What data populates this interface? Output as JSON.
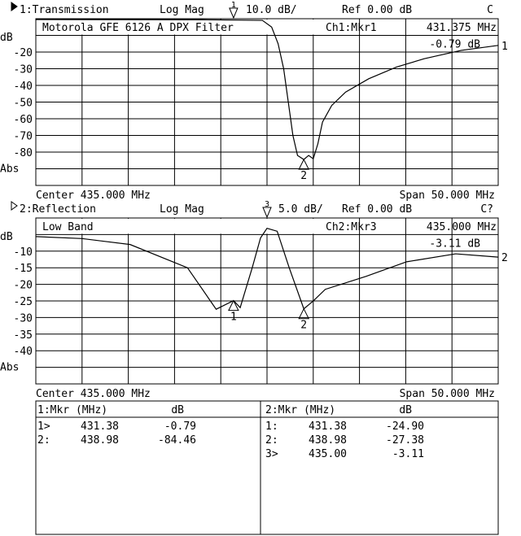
{
  "chart_data": [
    {
      "type": "line",
      "channel_header": "1:Transmission",
      "format": "Log Mag",
      "scale": "10.0 dB/",
      "ref": "Ref   0.00 dB",
      "status": "C",
      "title": "Motorola GFE 6126 A DPX Filter",
      "active_marker": "Ch1:Mkr1",
      "marker_freq": "431.375 MHz",
      "marker_value": "-0.79 dB",
      "ylabel": "dB",
      "yunit_label": "Abs",
      "y_ticks": [
        "-20",
        "-30",
        "-40",
        "-50",
        "-60",
        "-70",
        "-80"
      ],
      "ylim": [
        -100,
        0
      ],
      "xlim": [
        410,
        460
      ],
      "center": "Center 435.000 MHz",
      "span": "Span 50.000 MHz",
      "trace_label": "1",
      "x": [
        410,
        428,
        434.5,
        435.5,
        436.2,
        436.8,
        437.3,
        437.8,
        438.3,
        438.98,
        439.5,
        440,
        440.5,
        441,
        442,
        443.5,
        446,
        449,
        452,
        456,
        460
      ],
      "y": [
        -0.5,
        -0.6,
        -1,
        -5,
        -15,
        -30,
        -50,
        -70,
        -82,
        -84.46,
        -82,
        -84,
        -75,
        -62,
        -52,
        -44,
        -36,
        -29,
        -24,
        -19,
        -16
      ],
      "markers": [
        {
          "label": "1",
          "f": 431.38,
          "db": -0.79,
          "pos": "top"
        },
        {
          "label": "2",
          "f": 438.98,
          "db": -84.46,
          "pos": "trace"
        }
      ]
    },
    {
      "type": "line",
      "channel_header": "2:Reflection",
      "format": "Log Mag",
      "scale": "5.0 dB/",
      "ref": "Ref   0.00 dB",
      "status": "C?",
      "title": "Low Band",
      "active_marker": "Ch2:Mkr3",
      "marker_freq": "435.000 MHz",
      "marker_value": "-3.11 dB",
      "ylabel": "dB",
      "yunit_label": "Abs",
      "y_ticks": [
        "-10",
        "-15",
        "-20",
        "-25",
        "-30",
        "-35",
        "-40"
      ],
      "ylim": [
        -50,
        0
      ],
      "xlim": [
        410,
        460
      ],
      "center": "Center 435.000 MHz",
      "span": "Span 50.000 MHz",
      "trace_label": "2",
      "x": [
        410,
        415,
        420.2,
        426.4,
        429.5,
        431.38,
        432.1,
        433.4,
        434.3,
        435,
        436.1,
        437.4,
        438.98,
        440,
        441.3,
        445.7,
        450.1,
        455.4,
        460
      ],
      "y": [
        -5.6,
        -6.2,
        -8,
        -15,
        -27.5,
        -24.9,
        -27,
        -15,
        -6,
        -3.11,
        -4,
        -15,
        -27.38,
        -25,
        -21.5,
        -17.6,
        -13.2,
        -10.8,
        -11.8
      ],
      "markers": [
        {
          "label": "3",
          "f": 435.0,
          "db": -3.11,
          "pos": "top"
        },
        {
          "label": "1",
          "f": 431.38,
          "db": -24.9,
          "pos": "trace"
        },
        {
          "label": "2",
          "f": 438.98,
          "db": -27.38,
          "pos": "trace"
        }
      ]
    }
  ],
  "table": {
    "left": {
      "header_mkr": "1:Mkr (MHz)",
      "header_db": "dB",
      "rows": [
        [
          "1>",
          "431.38",
          "-0.79"
        ],
        [
          "2:",
          "438.98",
          "-84.46"
        ]
      ]
    },
    "right": {
      "header_mkr": "2:Mkr (MHz)",
      "header_db": "dB",
      "rows": [
        [
          "1:",
          "431.38",
          "-24.90"
        ],
        [
          "2:",
          "438.98",
          "-27.38"
        ],
        [
          "3>",
          "435.00",
          "-3.11"
        ]
      ]
    }
  }
}
